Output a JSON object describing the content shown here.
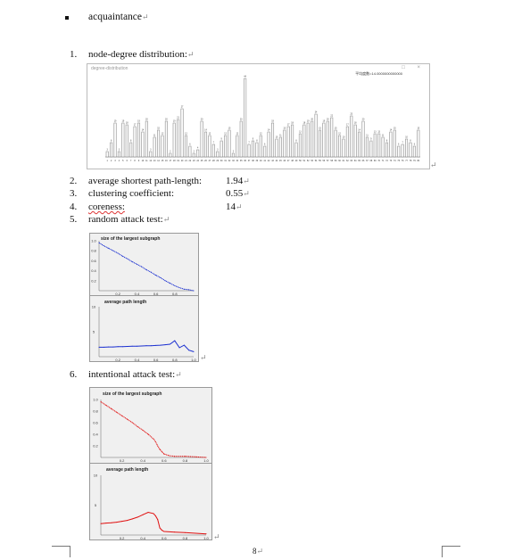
{
  "heading": {
    "text": "acquaintance",
    "mark": "↵"
  },
  "items": [
    {
      "num": "1.",
      "label": "node-degree distribution:",
      "value": ""
    },
    {
      "num": "2.",
      "label": "average shortest path-length:",
      "value": "1.94"
    },
    {
      "num": "3.",
      "label": "clustering coefficient:",
      "value": "0.55"
    },
    {
      "num": "4.",
      "label": "coreness:",
      "value": "14"
    },
    {
      "num": "5.",
      "label": "random attack test:",
      "value": ""
    },
    {
      "num": "6.",
      "label": "intentional attack test:",
      "value": ""
    }
  ],
  "para_mark": "↵",
  "page_number": "8",
  "degree_window": {
    "title": "degree-distribution",
    "corner_text": "平均度数=14.0000000000000",
    "controls": "□ ×"
  },
  "chart_data": [
    {
      "type": "bar",
      "title": "",
      "categories": [
        "1",
        "2",
        "3",
        "4",
        "5",
        "6",
        "7",
        "8",
        "9",
        "10",
        "11",
        "12",
        "13",
        "14",
        "15",
        "16",
        "17",
        "18",
        "19",
        "20",
        "21",
        "22",
        "23",
        "24",
        "25",
        "26",
        "27",
        "28",
        "29",
        "30",
        "31",
        "32",
        "33",
        "34",
        "35",
        "36",
        "37",
        "38",
        "39",
        "40",
        "41",
        "42",
        "43",
        "44",
        "45",
        "46",
        "47",
        "48",
        "49",
        "50",
        "51",
        "52",
        "53",
        "54",
        "55",
        "56",
        "57",
        "58",
        "59",
        "60",
        "61",
        "62",
        "63",
        "64",
        "65",
        "66",
        "67",
        "68",
        "69",
        "70",
        "71",
        "72",
        "73",
        "74",
        "75",
        "76",
        "77",
        "78",
        "79",
        "80"
      ],
      "values": [
        3,
        8,
        19,
        3,
        19,
        18,
        8,
        17,
        19,
        14,
        20,
        3,
        11,
        15,
        12,
        20,
        2,
        19,
        21,
        27,
        12,
        6,
        2,
        4,
        20,
        14,
        12,
        7,
        3,
        9,
        12,
        15,
        2,
        12,
        20,
        44,
        7,
        9,
        8,
        12,
        6,
        14,
        19,
        10,
        11,
        15,
        17,
        18,
        8,
        13,
        18,
        19,
        20,
        24,
        15,
        19,
        20,
        22,
        15,
        12,
        10,
        17,
        23,
        18,
        14,
        20,
        11,
        9,
        13,
        13,
        11,
        8,
        14,
        15,
        6,
        7,
        10,
        8,
        6,
        15
      ],
      "color": "#8a8a8a"
    },
    {
      "type": "line",
      "title": "size of the largest subgraph",
      "yticks": [
        "1.0",
        "0.8",
        "0.6",
        "0.4",
        "0.2"
      ],
      "xticks": [
        "0.2",
        "0.4",
        "0.6",
        "0.8"
      ],
      "xlim": [
        0,
        1
      ],
      "ylim": [
        0,
        1
      ],
      "color": "#1a2fd0",
      "x": [
        0.0,
        0.05,
        0.1,
        0.15,
        0.2,
        0.25,
        0.3,
        0.35,
        0.4,
        0.45,
        0.5,
        0.55,
        0.6,
        0.65,
        0.7,
        0.75,
        0.8,
        0.85,
        0.9,
        0.95,
        1.0
      ],
      "y": [
        0.96,
        0.9,
        0.85,
        0.8,
        0.75,
        0.69,
        0.64,
        0.58,
        0.53,
        0.48,
        0.42,
        0.37,
        0.31,
        0.26,
        0.2,
        0.15,
        0.1,
        0.06,
        0.03,
        0.02,
        0.0
      ]
    },
    {
      "type": "line",
      "title": "average path length",
      "yticks": [
        "10",
        "5"
      ],
      "xticks": [
        "0.2",
        "0.4",
        "0.6",
        "0.8",
        "1.0"
      ],
      "xlim": [
        0,
        1
      ],
      "ylim": [
        0,
        10
      ],
      "color": "#1a2fd0",
      "x": [
        0.0,
        0.05,
        0.1,
        0.15,
        0.2,
        0.25,
        0.3,
        0.35,
        0.4,
        0.45,
        0.5,
        0.55,
        0.6,
        0.65,
        0.7,
        0.75,
        0.8,
        0.85,
        0.9,
        0.95,
        1.0
      ],
      "y": [
        1.9,
        1.9,
        1.95,
        1.95,
        2.0,
        2.0,
        2.05,
        2.1,
        2.1,
        2.15,
        2.2,
        2.2,
        2.25,
        2.3,
        2.4,
        2.5,
        3.2,
        1.8,
        2.3,
        1.3,
        1.0
      ]
    },
    {
      "type": "line",
      "title": "size of the largest subgraph",
      "yticks": [
        "1.0",
        "0.8",
        "0.6",
        "0.4",
        "0.2"
      ],
      "xticks": [
        "0.2",
        "0.4",
        "0.6",
        "0.8",
        "1.0"
      ],
      "xlim": [
        0,
        1
      ],
      "ylim": [
        0,
        1
      ],
      "color": "#e01010",
      "x": [
        0.0,
        0.05,
        0.1,
        0.15,
        0.2,
        0.25,
        0.3,
        0.35,
        0.4,
        0.45,
        0.5,
        0.52,
        0.54,
        0.56,
        0.58,
        0.6,
        0.65,
        0.7,
        0.8,
        0.9,
        1.0
      ],
      "y": [
        0.96,
        0.9,
        0.84,
        0.78,
        0.72,
        0.66,
        0.6,
        0.53,
        0.47,
        0.4,
        0.32,
        0.27,
        0.2,
        0.14,
        0.1,
        0.06,
        0.03,
        0.02,
        0.02,
        0.01,
        0.0
      ]
    },
    {
      "type": "line",
      "title": "average path length",
      "yticks": [
        "10",
        "5"
      ],
      "xticks": [
        "0.2",
        "0.4",
        "0.6",
        "0.8",
        "1.0"
      ],
      "xlim": [
        0,
        1
      ],
      "ylim": [
        0,
        10
      ],
      "color": "#e01010",
      "x": [
        0.0,
        0.05,
        0.1,
        0.15,
        0.2,
        0.25,
        0.3,
        0.35,
        0.4,
        0.45,
        0.5,
        0.52,
        0.54,
        0.56,
        0.58,
        0.6,
        0.7,
        0.8,
        0.9,
        1.0
      ],
      "y": [
        1.9,
        2.0,
        2.05,
        2.15,
        2.3,
        2.45,
        2.7,
        3.0,
        3.4,
        3.8,
        3.6,
        3.2,
        2.6,
        1.2,
        0.8,
        0.6,
        0.5,
        0.4,
        0.3,
        0.2
      ]
    }
  ]
}
